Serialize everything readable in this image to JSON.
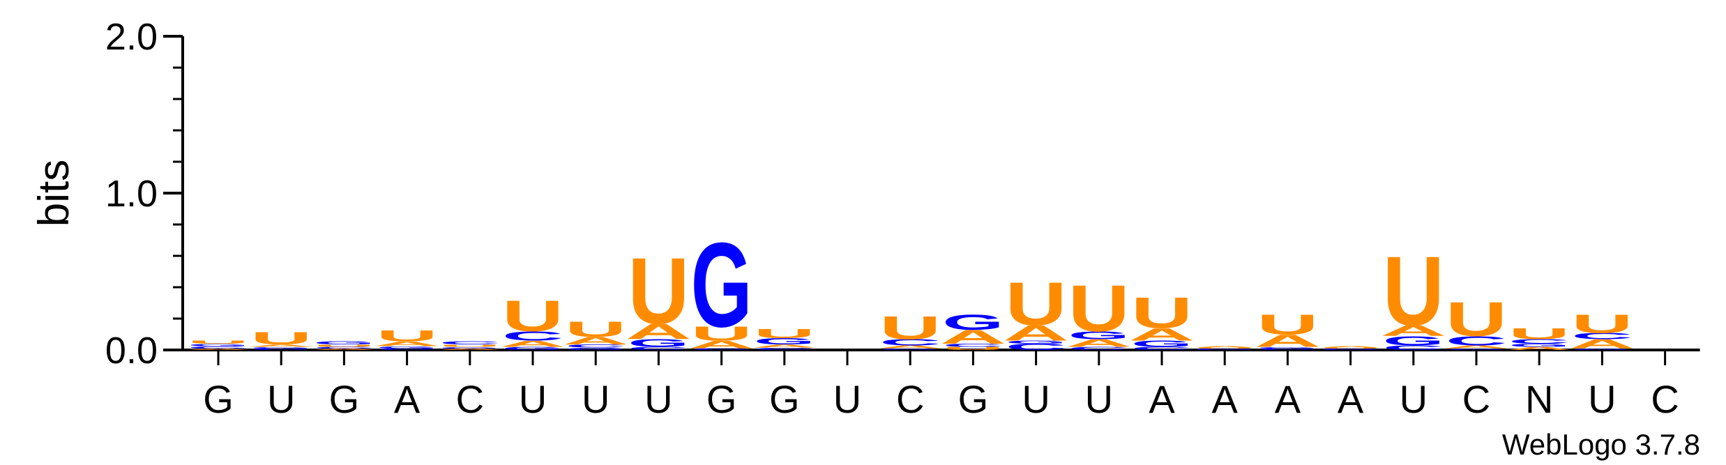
{
  "colors": {
    "A": "#ff8c00",
    "U": "#ff8c00",
    "G": "#0000ff",
    "C": "#0000ff",
    "axis": "#000000"
  },
  "chart_data": {
    "type": "sequence-logo",
    "ylabel": "bits",
    "ylim": [
      0,
      2.0
    ],
    "yticks": [
      "0.0",
      "1.0",
      "2.0"
    ],
    "credit": "WebLogo 3.7.8",
    "positions": [
      {
        "label": "G",
        "stack": [
          {
            "letter": "A",
            "bits": 0.01
          },
          {
            "letter": "C",
            "bits": 0.015
          },
          {
            "letter": "G",
            "bits": 0.015
          },
          {
            "letter": "U",
            "bits": 0.02
          }
        ]
      },
      {
        "label": "U",
        "stack": [
          {
            "letter": "C",
            "bits": 0.01
          },
          {
            "letter": "G",
            "bits": 0.01
          },
          {
            "letter": "A",
            "bits": 0.015
          },
          {
            "letter": "U",
            "bits": 0.08
          }
        ]
      },
      {
        "label": "G",
        "stack": [
          {
            "letter": "A",
            "bits": 0.01
          },
          {
            "letter": "C",
            "bits": 0.01
          },
          {
            "letter": "U",
            "bits": 0.015
          },
          {
            "letter": "G",
            "bits": 0.02
          }
        ]
      },
      {
        "label": "A",
        "stack": [
          {
            "letter": "C",
            "bits": 0.01
          },
          {
            "letter": "G",
            "bits": 0.015
          },
          {
            "letter": "A",
            "bits": 0.03
          },
          {
            "letter": "U",
            "bits": 0.07
          }
        ]
      },
      {
        "label": "C",
        "stack": [
          {
            "letter": "A",
            "bits": 0.01
          },
          {
            "letter": "G",
            "bits": 0.01
          },
          {
            "letter": "U",
            "bits": 0.015
          },
          {
            "letter": "C",
            "bits": 0.02
          }
        ]
      },
      {
        "label": "U",
        "stack": [
          {
            "letter": "G",
            "bits": 0.02
          },
          {
            "letter": "A",
            "bits": 0.04
          },
          {
            "letter": "C",
            "bits": 0.06
          },
          {
            "letter": "U",
            "bits": 0.2
          }
        ]
      },
      {
        "label": "U",
        "stack": [
          {
            "letter": "G",
            "bits": 0.015
          },
          {
            "letter": "C",
            "bits": 0.02
          },
          {
            "letter": "A",
            "bits": 0.05
          },
          {
            "letter": "U",
            "bits": 0.1
          }
        ]
      },
      {
        "label": "U",
        "stack": [
          {
            "letter": "C",
            "bits": 0.02
          },
          {
            "letter": "G",
            "bits": 0.05
          },
          {
            "letter": "A",
            "bits": 0.1
          },
          {
            "letter": "U",
            "bits": 0.43
          }
        ]
      },
      {
        "label": "G",
        "stack": [
          {
            "letter": "C",
            "bits": 0.01
          },
          {
            "letter": "A",
            "bits": 0.05
          },
          {
            "letter": "U",
            "bits": 0.09
          },
          {
            "letter": "G",
            "bits": 0.55
          }
        ]
      },
      {
        "label": "G",
        "stack": [
          {
            "letter": "C",
            "bits": 0.015
          },
          {
            "letter": "A",
            "bits": 0.02
          },
          {
            "letter": "G",
            "bits": 0.04
          },
          {
            "letter": "U",
            "bits": 0.06
          }
        ]
      },
      {
        "label": "U",
        "stack": []
      },
      {
        "label": "C",
        "stack": [
          {
            "letter": "G",
            "bits": 0.01
          },
          {
            "letter": "A",
            "bits": 0.02
          },
          {
            "letter": "C",
            "bits": 0.04
          },
          {
            "letter": "U",
            "bits": 0.15
          }
        ]
      },
      {
        "label": "G",
        "stack": [
          {
            "letter": "U",
            "bits": 0.02
          },
          {
            "letter": "C",
            "bits": 0.02
          },
          {
            "letter": "A",
            "bits": 0.09
          },
          {
            "letter": "G",
            "bits": 0.1
          }
        ]
      },
      {
        "label": "U",
        "stack": [
          {
            "letter": "C",
            "bits": 0.04
          },
          {
            "letter": "G",
            "bits": 0.02
          },
          {
            "letter": "A",
            "bits": 0.1
          },
          {
            "letter": "U",
            "bits": 0.28
          }
        ]
      },
      {
        "label": "U",
        "stack": [
          {
            "letter": "C",
            "bits": 0.02
          },
          {
            "letter": "A",
            "bits": 0.05
          },
          {
            "letter": "G",
            "bits": 0.05
          },
          {
            "letter": "U",
            "bits": 0.3
          }
        ]
      },
      {
        "label": "A",
        "stack": [
          {
            "letter": "C",
            "bits": 0.02
          },
          {
            "letter": "G",
            "bits": 0.04
          },
          {
            "letter": "A",
            "bits": 0.08
          },
          {
            "letter": "U",
            "bits": 0.2
          }
        ]
      },
      {
        "label": "A",
        "stack": [
          {
            "letter": "G",
            "bits": 0.005
          },
          {
            "letter": "C",
            "bits": 0.005
          },
          {
            "letter": "U",
            "bits": 0.005
          },
          {
            "letter": "A",
            "bits": 0.01
          }
        ]
      },
      {
        "label": "A",
        "stack": [
          {
            "letter": "C",
            "bits": 0.01
          },
          {
            "letter": "G",
            "bits": 0.01
          },
          {
            "letter": "A",
            "bits": 0.08
          },
          {
            "letter": "U",
            "bits": 0.13
          }
        ]
      },
      {
        "label": "A",
        "stack": [
          {
            "letter": "G",
            "bits": 0.005
          },
          {
            "letter": "C",
            "bits": 0.005
          },
          {
            "letter": "U",
            "bits": 0.005
          },
          {
            "letter": "A",
            "bits": 0.01
          }
        ]
      },
      {
        "label": "U",
        "stack": [
          {
            "letter": "C",
            "bits": 0.03
          },
          {
            "letter": "G",
            "bits": 0.06
          },
          {
            "letter": "A",
            "bits": 0.07
          },
          {
            "letter": "U",
            "bits": 0.45
          }
        ]
      },
      {
        "label": "C",
        "stack": [
          {
            "letter": "G",
            "bits": 0.01
          },
          {
            "letter": "A",
            "bits": 0.02
          },
          {
            "letter": "C",
            "bits": 0.06
          },
          {
            "letter": "U",
            "bits": 0.22
          }
        ]
      },
      {
        "label": "N",
        "stack": [
          {
            "letter": "A",
            "bits": 0.02
          },
          {
            "letter": "G",
            "bits": 0.02
          },
          {
            "letter": "C",
            "bits": 0.03
          },
          {
            "letter": "U",
            "bits": 0.07
          }
        ]
      },
      {
        "label": "U",
        "stack": [
          {
            "letter": "G",
            "bits": 0.01
          },
          {
            "letter": "A",
            "bits": 0.06
          },
          {
            "letter": "C",
            "bits": 0.04
          },
          {
            "letter": "U",
            "bits": 0.12
          }
        ]
      },
      {
        "label": "C",
        "stack": []
      }
    ]
  }
}
